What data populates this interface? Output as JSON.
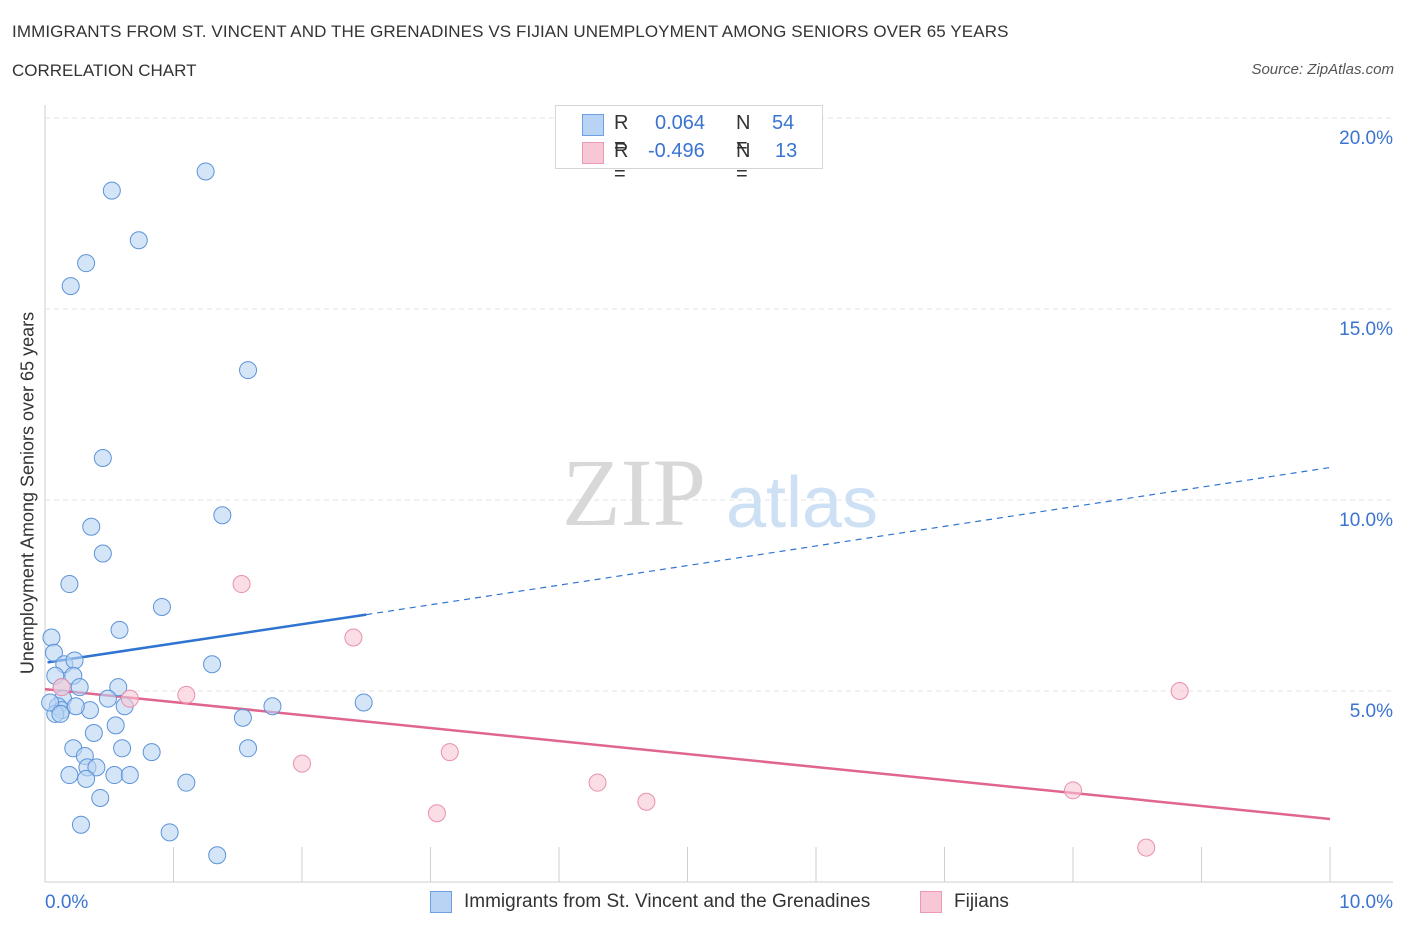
{
  "header": {
    "title": "IMMIGRANTS FROM ST. VINCENT AND THE GRENADINES VS FIJIAN UNEMPLOYMENT AMONG SENIORS OVER 65 YEARS",
    "subtitle": "CORRELATION CHART",
    "source": "Source: ZipAtlas.com"
  },
  "watermark": {
    "zip": "ZIP",
    "atlas": "atlas"
  },
  "legend": {
    "r_label": "R =",
    "n_label": "N =",
    "series": [
      {
        "r": "0.064",
        "n": "54"
      },
      {
        "r": "-0.496",
        "n": "13"
      }
    ]
  },
  "colors": {
    "blue_fill": "#b8d3f3",
    "blue_stroke": "#5d93d9",
    "blue_line": "#2f74d0",
    "pink_fill": "#f8c7d6",
    "pink_stroke": "#e891ac",
    "pink_line": "#e0658f",
    "tick_label": "#3a74d0",
    "grid": "#e3e3e3"
  },
  "chart_data": {
    "type": "scatter",
    "title": "IMMIGRANTS FROM ST. VINCENT AND THE GRENADINES VS FIJIAN UNEMPLOYMENT AMONG SENIORS OVER 65 YEARS",
    "xlabel": "",
    "ylabel": "Unemployment Among Seniors over 65 years",
    "xlim": [
      0,
      10
    ],
    "ylim": [
      0,
      20
    ],
    "x_tick_labels": [
      "0.0%",
      "10.0%"
    ],
    "y_ticks": [
      5,
      10,
      15,
      20
    ],
    "y_tick_labels": [
      "5.0%",
      "10.0%",
      "15.0%",
      "20.0%"
    ],
    "grid": true,
    "series": [
      {
        "name": "Immigrants from St. Vincent and the Grenadines",
        "color": "#5d93d9",
        "r": 0.064,
        "n": 54,
        "trend": {
          "x0": 0.02,
          "y0": 5.75,
          "x1": 2.5,
          "y1": 7.0,
          "extend_to_x": 10,
          "extend_to_y": 10.85
        },
        "points": [
          [
            1.25,
            18.6
          ],
          [
            0.52,
            18.1
          ],
          [
            0.73,
            16.8
          ],
          [
            0.32,
            16.2
          ],
          [
            0.2,
            15.6
          ],
          [
            1.58,
            13.4
          ],
          [
            0.45,
            11.1
          ],
          [
            1.38,
            9.6
          ],
          [
            0.36,
            9.3
          ],
          [
            0.45,
            8.6
          ],
          [
            0.19,
            7.8
          ],
          [
            0.91,
            7.2
          ],
          [
            0.58,
            6.6
          ],
          [
            0.05,
            6.4
          ],
          [
            0.07,
            6.0
          ],
          [
            0.15,
            5.7
          ],
          [
            0.23,
            5.8
          ],
          [
            1.3,
            5.7
          ],
          [
            0.22,
            5.4
          ],
          [
            0.08,
            5.4
          ],
          [
            0.13,
            5.1
          ],
          [
            0.27,
            5.1
          ],
          [
            0.57,
            5.1
          ],
          [
            0.14,
            4.8
          ],
          [
            0.49,
            4.8
          ],
          [
            0.62,
            4.6
          ],
          [
            0.1,
            4.6
          ],
          [
            0.13,
            4.5
          ],
          [
            0.35,
            4.5
          ],
          [
            1.77,
            4.6
          ],
          [
            2.48,
            4.7
          ],
          [
            0.08,
            4.4
          ],
          [
            1.54,
            4.3
          ],
          [
            0.55,
            4.1
          ],
          [
            0.38,
            3.9
          ],
          [
            0.22,
            3.5
          ],
          [
            0.6,
            3.5
          ],
          [
            0.83,
            3.4
          ],
          [
            1.58,
            3.5
          ],
          [
            0.31,
            3.3
          ],
          [
            0.33,
            3.0
          ],
          [
            0.4,
            3.0
          ],
          [
            0.54,
            2.8
          ],
          [
            0.66,
            2.8
          ],
          [
            0.19,
            2.8
          ],
          [
            0.32,
            2.7
          ],
          [
            1.1,
            2.6
          ],
          [
            0.43,
            2.2
          ],
          [
            0.28,
            1.5
          ],
          [
            0.97,
            1.3
          ],
          [
            1.34,
            0.7
          ],
          [
            0.04,
            4.7
          ],
          [
            0.24,
            4.6
          ],
          [
            0.12,
            4.4
          ]
        ]
      },
      {
        "name": "Fijians",
        "color": "#e891ac",
        "r": -0.496,
        "n": 13,
        "trend": {
          "x0": 0.0,
          "y0": 5.05,
          "x1": 10.0,
          "y1": 1.65
        },
        "points": [
          [
            1.53,
            7.8
          ],
          [
            2.4,
            6.4
          ],
          [
            8.83,
            5.0
          ],
          [
            1.1,
            4.9
          ],
          [
            0.66,
            4.8
          ],
          [
            0.13,
            5.1
          ],
          [
            3.15,
            3.4
          ],
          [
            2.0,
            3.1
          ],
          [
            4.3,
            2.6
          ],
          [
            8.0,
            2.4
          ],
          [
            4.68,
            2.1
          ],
          [
            3.05,
            1.8
          ],
          [
            8.57,
            0.9
          ]
        ]
      }
    ]
  }
}
